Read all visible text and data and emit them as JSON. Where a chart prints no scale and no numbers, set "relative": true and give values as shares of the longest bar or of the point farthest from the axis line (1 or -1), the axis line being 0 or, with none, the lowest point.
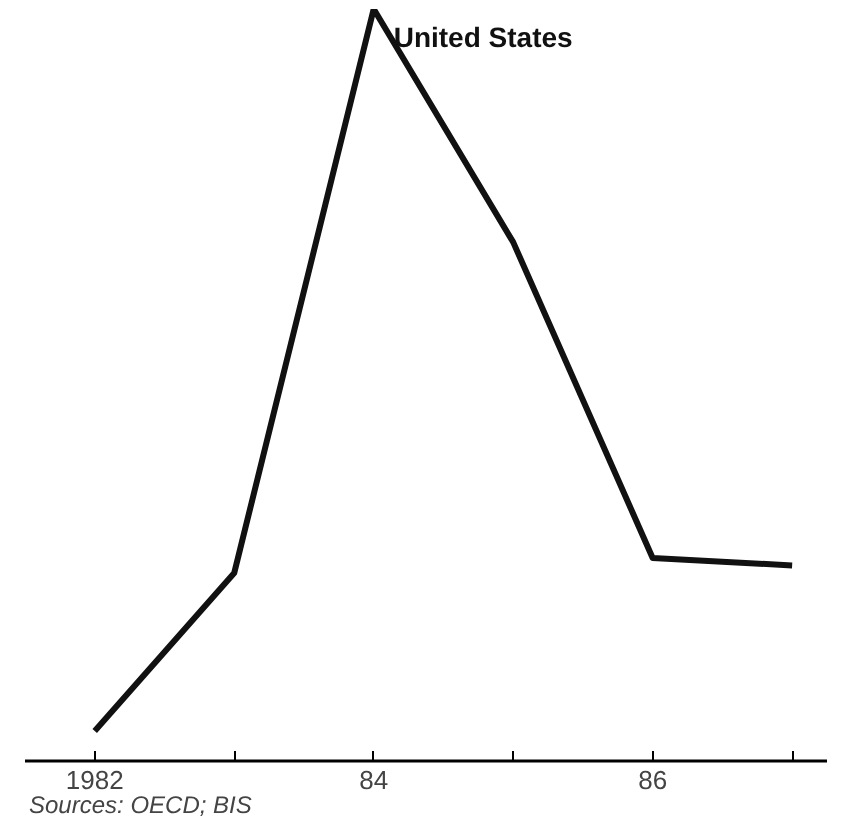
{
  "chart_data": {
    "type": "line",
    "relative": true,
    "x": [
      1982,
      1983,
      1984,
      1985,
      1986,
      1987
    ],
    "series": [
      {
        "name": "United States",
        "color": "#111111",
        "values": [
          0.04,
          0.25,
          1,
          0.69,
          0.27,
          0.26
        ]
      }
    ],
    "xlim": [
      1981.5,
      1987.25
    ],
    "xticks": [
      1982,
      {
        "value": 1983,
        "label": null
      },
      {
        "value": 1984,
        "label": "84"
      },
      {
        "value": 1985,
        "label": null
      },
      {
        "value": 1986,
        "label": "86"
      },
      {
        "value": 1987,
        "label": null
      }
    ],
    "grid": false,
    "marker": "none",
    "line_style": "solid",
    "annotations": [
      "Sources: OECD; BIS"
    ]
  }
}
